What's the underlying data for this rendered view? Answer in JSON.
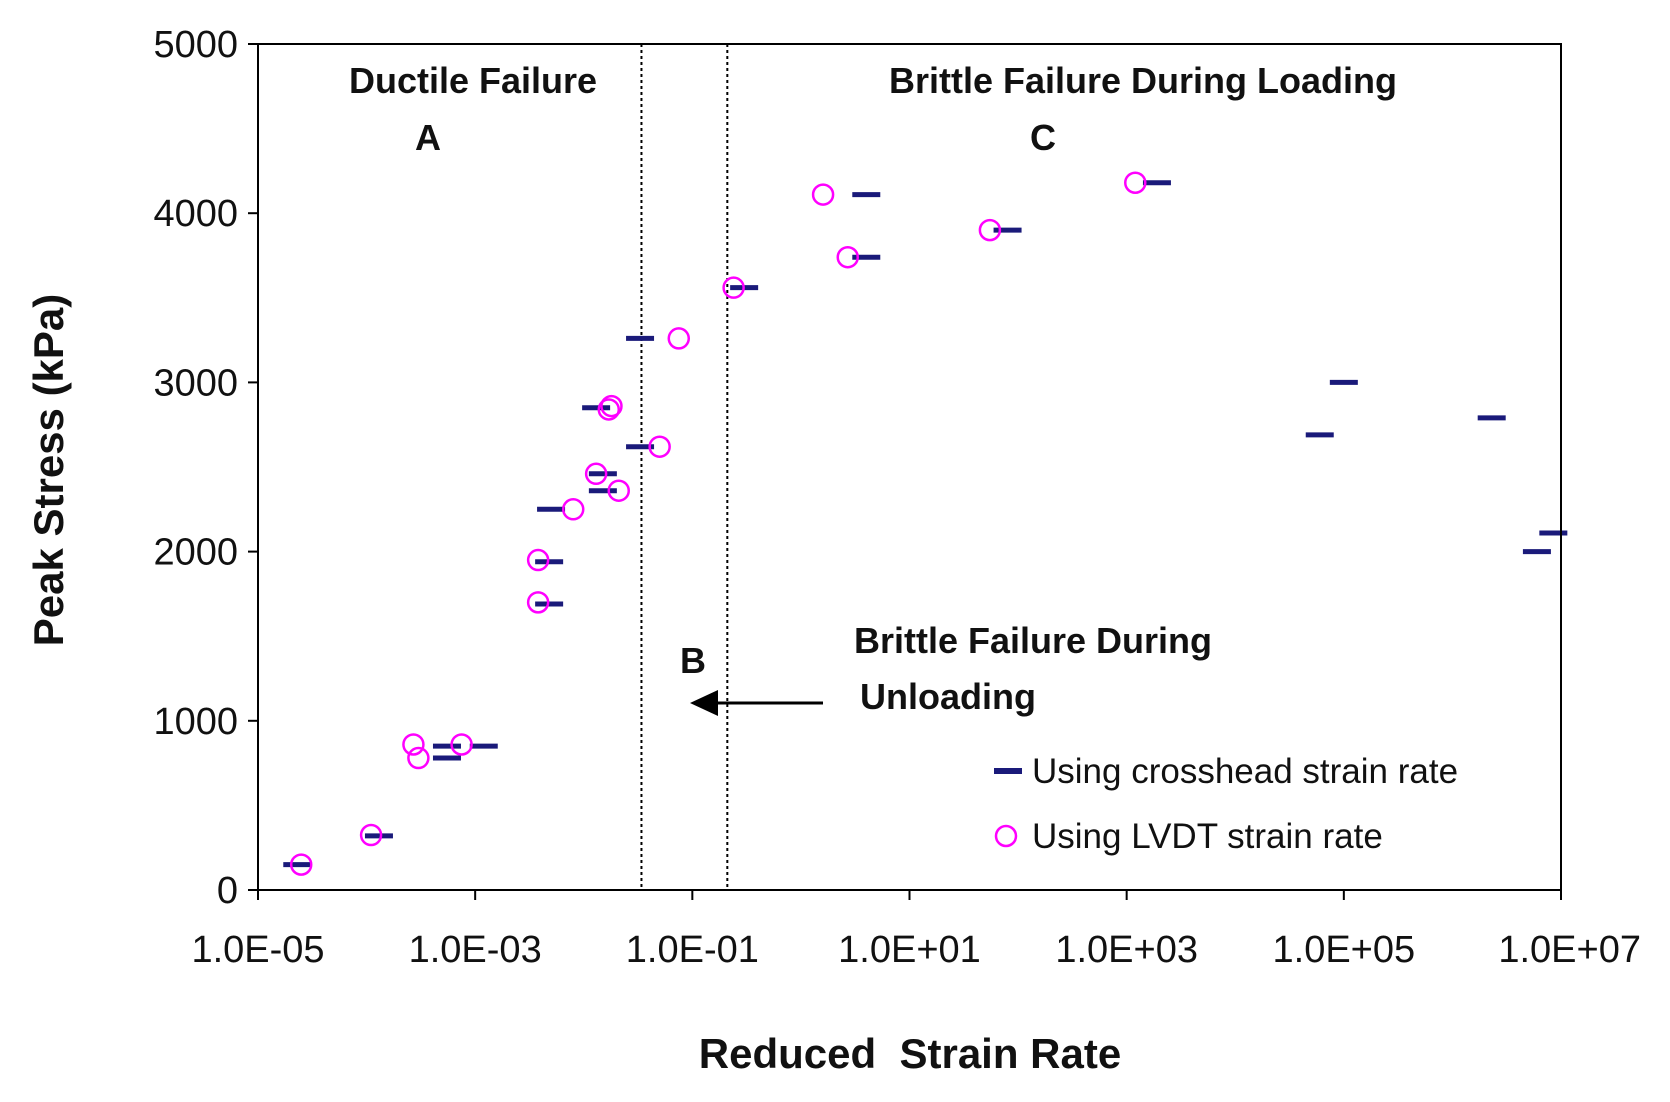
{
  "chart_data": {
    "type": "scatter",
    "xlabel": "Reduced  Strain Rate",
    "ylabel": "Peak Stress (kPa)",
    "x_scale": "log",
    "xlim": [
      1e-05,
      10000000.0
    ],
    "ylim": [
      0,
      5000
    ],
    "x_tick_labels": [
      "1.0E-05",
      "1.0E-03",
      "1.0E-01",
      "1.0E+01",
      "1.0E+03",
      "1.0E+05",
      "1.0E+07"
    ],
    "x_tick_values": [
      1e-05,
      0.001,
      0.1,
      10.0,
      1000.0,
      100000.0,
      10000000.0
    ],
    "y_tick_labels": [
      "0",
      "1000",
      "2000",
      "3000",
      "4000",
      "5000"
    ],
    "y_tick_values": [
      0,
      1000,
      2000,
      3000,
      4000,
      5000
    ],
    "grid": false,
    "legend_position": "bottom-right",
    "region_boundaries": [
      0.034,
      0.21
    ],
    "annotations": {
      "region_a_title": "Ductile Failure",
      "region_a_letter": "A",
      "region_b_letter": "B",
      "region_b_line1": "Brittle Failure During",
      "region_b_line2": "Unloading",
      "region_c_title": "Brittle Failure During Loading",
      "region_c_letter": "C"
    },
    "series": [
      {
        "name": "Using crosshead strain rate",
        "marker": "dash",
        "color": "#1a1a7a",
        "points": [
          [
            2.3e-05,
            150
          ],
          [
            0.00013,
            320
          ],
          [
            0.00055,
            780
          ],
          [
            0.00055,
            850
          ],
          [
            0.0012,
            850
          ],
          [
            0.0048,
            1690
          ],
          [
            0.0048,
            1940
          ],
          [
            0.005,
            2250
          ],
          [
            0.015,
            2360
          ],
          [
            0.015,
            2460
          ],
          [
            0.013,
            2850
          ],
          [
            0.033,
            2620
          ],
          [
            0.033,
            3260
          ],
          [
            0.3,
            3560
          ],
          [
            4.0,
            3740
          ],
          [
            4.0,
            4110
          ],
          [
            80,
            3900
          ],
          [
            1900,
            4180
          ],
          [
            60000,
            2690
          ],
          [
            100000,
            3000
          ],
          [
            2300000,
            2790
          ],
          [
            6000000,
            2000
          ],
          [
            8500000,
            2110
          ]
        ]
      },
      {
        "name": "Using LVDT strain rate",
        "marker": "circle",
        "color": "#ff00ff",
        "points": [
          [
            2.5e-05,
            150
          ],
          [
            0.00011,
            325
          ],
          [
            0.00027,
            860
          ],
          [
            0.0003,
            780
          ],
          [
            0.00075,
            860
          ],
          [
            0.0038,
            1700
          ],
          [
            0.0038,
            1950
          ],
          [
            0.008,
            2250
          ],
          [
            0.013,
            2460
          ],
          [
            0.021,
            2360
          ],
          [
            0.017,
            2840
          ],
          [
            0.018,
            2860
          ],
          [
            0.05,
            2620
          ],
          [
            0.075,
            3260
          ],
          [
            0.24,
            3560
          ],
          [
            1.6,
            4110
          ],
          [
            2.7,
            3740
          ],
          [
            55,
            3900
          ],
          [
            1200,
            4180
          ]
        ]
      }
    ]
  }
}
